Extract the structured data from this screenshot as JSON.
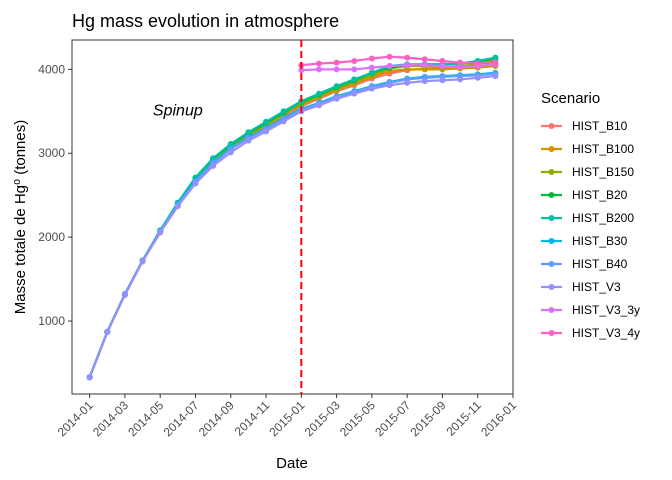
{
  "chart_data": {
    "type": "line",
    "title": "Hg mass evolution in atmosphere",
    "xlabel": "Date",
    "ylabel": "Masse totale de Hg⁰ (tonnes)",
    "xlim": [
      "2013-12-01",
      "2016-01-01"
    ],
    "ylim": [
      130,
      4350
    ],
    "x_ticks": [
      "2014-01",
      "2014-03",
      "2014-05",
      "2014-07",
      "2014-09",
      "2014-11",
      "2015-01",
      "2015-03",
      "2015-05",
      "2015-07",
      "2015-09",
      "2015-11",
      "2016-01"
    ],
    "y_ticks": [
      1000,
      2000,
      3000,
      4000
    ],
    "grid": false,
    "legend": {
      "title": "Scenario",
      "position": "right"
    },
    "annotations": [
      {
        "text": "Spinup",
        "x": "2014-06-01",
        "y": 3450
      },
      {
        "type": "vline",
        "x": "2015-01-01",
        "color": "#ff0000",
        "linestyle": "dashed"
      }
    ],
    "spinup": {
      "x": [
        "2014-01",
        "2014-02",
        "2014-03",
        "2014-04",
        "2014-05",
        "2014-06",
        "2014-07",
        "2014-08",
        "2014-09",
        "2014-10",
        "2014-11",
        "2014-12",
        "2015-01"
      ],
      "series": [
        {
          "name": "HIST_B10",
          "values": [
            330,
            870,
            1320,
            1720,
            2070,
            2390,
            2680,
            2900,
            3070,
            3200,
            3320,
            3440,
            3560
          ]
        },
        {
          "name": "HIST_B100",
          "values": [
            330,
            870,
            1320,
            1720,
            2070,
            2400,
            2690,
            2910,
            3080,
            3210,
            3330,
            3460,
            3580
          ]
        },
        {
          "name": "HIST_B150",
          "values": [
            330,
            870,
            1320,
            1720,
            2075,
            2405,
            2700,
            2920,
            3090,
            3220,
            3345,
            3470,
            3590
          ]
        },
        {
          "name": "HIST_B20",
          "values": [
            330,
            870,
            1320,
            1720,
            2080,
            2410,
            2710,
            2935,
            3100,
            3240,
            3360,
            3485,
            3610
          ]
        },
        {
          "name": "HIST_B200",
          "values": [
            330,
            870,
            1320,
            1720,
            2080,
            2410,
            2710,
            2940,
            3110,
            3250,
            3375,
            3500,
            3620
          ]
        },
        {
          "name": "HIST_B30",
          "values": [
            330,
            870,
            1320,
            1720,
            2070,
            2390,
            2670,
            2890,
            3060,
            3190,
            3300,
            3420,
            3530
          ]
        },
        {
          "name": "HIST_B40",
          "values": [
            330,
            870,
            1320,
            1720,
            2065,
            2380,
            2660,
            2880,
            3050,
            3180,
            3290,
            3410,
            3520
          ]
        },
        {
          "name": "HIST_V3",
          "values": [
            330,
            870,
            1310,
            1710,
            2055,
            2370,
            2640,
            2850,
            3010,
            3150,
            3260,
            3380,
            3500
          ]
        }
      ]
    },
    "x": [
      "2015-01",
      "2015-02",
      "2015-03",
      "2015-04",
      "2015-05",
      "2015-06",
      "2015-07",
      "2015-08",
      "2015-09",
      "2015-10",
      "2015-11",
      "2015-12"
    ],
    "series": [
      {
        "name": "HIST_B10",
        "color": "#F8766D",
        "values": [
          3560,
          3650,
          3740,
          3810,
          3890,
          3950,
          3990,
          4010,
          4010,
          4020,
          4030,
          4060
        ]
      },
      {
        "name": "HIST_B100",
        "color": "#D39200",
        "values": [
          3580,
          3670,
          3750,
          3830,
          3910,
          3980,
          4000,
          4000,
          4000,
          4010,
          4020,
          4040
        ]
      },
      {
        "name": "HIST_B150",
        "color": "#93AA00",
        "values": [
          3590,
          3680,
          3770,
          3850,
          3930,
          4010,
          4040,
          4040,
          4030,
          4040,
          4060,
          4110
        ]
      },
      {
        "name": "HIST_B20",
        "color": "#00BA38",
        "values": [
          3610,
          3700,
          3790,
          3870,
          3960,
          4020,
          4050,
          4060,
          4060,
          4070,
          4090,
          4130
        ]
      },
      {
        "name": "HIST_B200",
        "color": "#00C19F",
        "values": [
          3620,
          3710,
          3800,
          3880,
          3960,
          4040,
          4060,
          4060,
          4060,
          4070,
          4100,
          4140
        ]
      },
      {
        "name": "HIST_B30",
        "color": "#00B9E3",
        "values": [
          3530,
          3600,
          3680,
          3740,
          3800,
          3850,
          3890,
          3910,
          3920,
          3930,
          3940,
          3960
        ]
      },
      {
        "name": "HIST_B40",
        "color": "#619CFF",
        "values": [
          3520,
          3590,
          3670,
          3730,
          3790,
          3840,
          3880,
          3900,
          3910,
          3920,
          3930,
          3950
        ]
      },
      {
        "name": "HIST_V3",
        "color": "#9590FF",
        "values": [
          3500,
          3570,
          3650,
          3710,
          3770,
          3810,
          3840,
          3860,
          3870,
          3880,
          3900,
          3920
        ]
      },
      {
        "name": "HIST_V3_3y",
        "color": "#DB72FB",
        "values": [
          3990,
          4000,
          4000,
          4000,
          4020,
          4040,
          4050,
          4050,
          4040,
          4030,
          4040,
          4060
        ]
      },
      {
        "name": "HIST_V3_4y",
        "color": "#FF61C3",
        "values": [
          4050,
          4070,
          4080,
          4100,
          4130,
          4150,
          4140,
          4120,
          4100,
          4080,
          4070,
          4080
        ]
      }
    ]
  }
}
